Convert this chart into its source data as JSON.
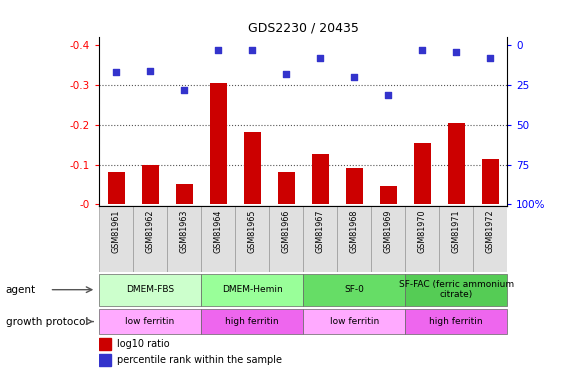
{
  "title": "GDS2230 / 20435",
  "samples": [
    "GSM81961",
    "GSM81962",
    "GSM81963",
    "GSM81964",
    "GSM81965",
    "GSM81966",
    "GSM81967",
    "GSM81968",
    "GSM81969",
    "GSM81970",
    "GSM81971",
    "GSM81972"
  ],
  "log10_ratio": [
    -0.082,
    -0.1,
    -0.052,
    -0.305,
    -0.183,
    -0.082,
    -0.127,
    -0.092,
    -0.045,
    -0.155,
    -0.205,
    -0.115
  ],
  "percentile_rank": [
    17,
    16,
    28,
    3,
    3,
    18,
    8,
    20,
    31,
    3,
    4,
    8
  ],
  "bar_color": "#cc0000",
  "dot_color": "#3333cc",
  "agent_groups": [
    {
      "label": "DMEM-FBS",
      "start": 0,
      "end": 3,
      "color": "#ccffcc"
    },
    {
      "label": "DMEM-Hemin",
      "start": 3,
      "end": 6,
      "color": "#99ff99"
    },
    {
      "label": "SF-0",
      "start": 6,
      "end": 9,
      "color": "#66dd66"
    },
    {
      "label": "SF-FAC (ferric ammonium\ncitrate)",
      "start": 9,
      "end": 12,
      "color": "#55cc55"
    }
  ],
  "growth_groups": [
    {
      "label": "low ferritin",
      "start": 0,
      "end": 3,
      "color": "#ffaaff"
    },
    {
      "label": "high ferritin",
      "start": 3,
      "end": 6,
      "color": "#ee66ee"
    },
    {
      "label": "low ferritin",
      "start": 6,
      "end": 9,
      "color": "#ffaaff"
    },
    {
      "label": "high ferritin",
      "start": 9,
      "end": 12,
      "color": "#ee66ee"
    }
  ]
}
